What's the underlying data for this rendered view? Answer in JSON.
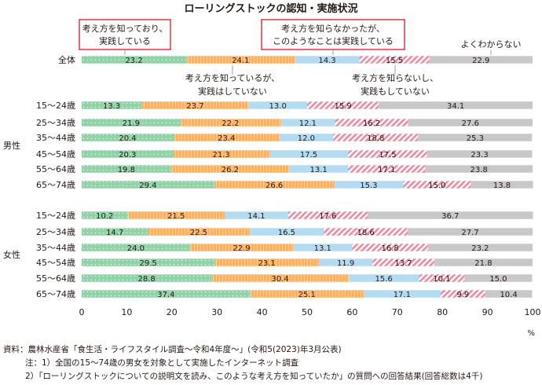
{
  "chart_data": {
    "type": "bar",
    "stacked": true,
    "orientation": "horizontal",
    "title": "ローリングストックの認知・実施状況",
    "x_unit": "%",
    "xlim": [
      0,
      100
    ],
    "x_ticks": [
      "0",
      "10",
      "20",
      "30",
      "40",
      "50",
      "60",
      "70",
      "80",
      "90",
      "100"
    ],
    "grid": false,
    "legend_labels": [
      "考え方を知っており、\n実践している",
      "考え方を知っているが、\n実践はしていない",
      "考え方を知らなかったが、\nこのようなことは実践している",
      "考え方を知らないし、\n実践もしていない",
      "よくわからない"
    ],
    "group_labels": [
      "男性",
      "女性"
    ],
    "categories": [
      "全体",
      "15～24歳",
      "25～34歳",
      "35～44歳",
      "45～54歳",
      "55～64歳",
      "65～74歳",
      "15～24歳",
      "25～34歳",
      "35～44歳",
      "45～54歳",
      "55～64歳",
      "65～74歳"
    ],
    "series": [
      {
        "values": [
          23.2,
          13.3,
          21.9,
          20.4,
          20.3,
          19.8,
          29.4,
          10.2,
          14.7,
          24.0,
          29.5,
          28.8,
          37.4
        ]
      },
      {
        "values": [
          24.1,
          23.7,
          22.2,
          23.4,
          21.3,
          26.2,
          26.6,
          21.5,
          22.5,
          22.9,
          23.1,
          30.4,
          25.1
        ]
      },
      {
        "values": [
          14.3,
          13.0,
          12.1,
          12.0,
          17.5,
          13.1,
          15.3,
          14.1,
          16.5,
          13.1,
          11.9,
          15.6,
          17.1
        ]
      },
      {
        "values": [
          15.5,
          15.9,
          16.2,
          18.8,
          17.5,
          17.1,
          15.0,
          17.6,
          18.6,
          16.8,
          13.7,
          10.1,
          9.9
        ]
      },
      {
        "values": [
          22.9,
          34.1,
          27.6,
          25.3,
          23.3,
          23.8,
          13.8,
          36.7,
          27.7,
          23.2,
          21.8,
          15.0,
          10.4
        ]
      }
    ],
    "colors": {
      "s1": "#8fd3a7",
      "s2": "#f7b267",
      "s3": "#b3dcf3",
      "s4": "#f08aa0",
      "s5": "#c8c8c8",
      "legend_box": "#e60012",
      "leader": "#888888"
    }
  },
  "notes": {
    "source": "資料：農林水産省「食生活・ライフスタイル調査～令和4年度～」(令和5(2023)年3月公表)",
    "note1": "注：1）全国の15～74歳の男女を対象として実施したインターネット調査",
    "note2": "2）「ローリングストックについての説明文を読み、このような考え方を知っていたか」の質問への回答結果(回答総数は4千)"
  }
}
